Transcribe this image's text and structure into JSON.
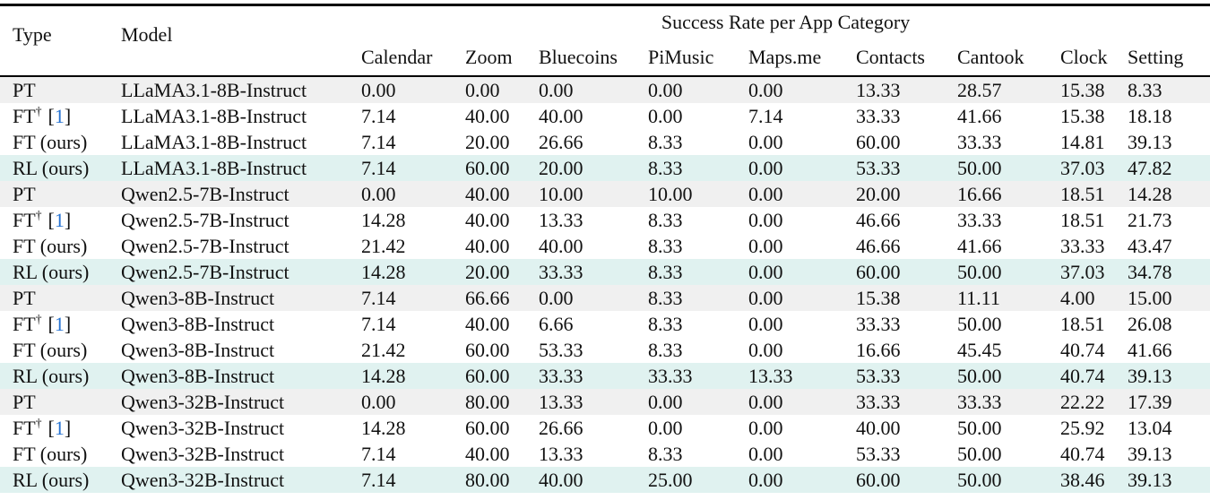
{
  "table": {
    "col_type": "Type",
    "col_model": "Model",
    "group_title": "Success Rate per App Category",
    "app_columns": [
      "Calendar",
      "Zoom",
      "Bluecoins",
      "PiMusic",
      "Maps.me",
      "Contacts",
      "Cantook",
      "Clock",
      "Setting"
    ],
    "cite_open": "[",
    "cite_close": "]",
    "rows": [
      {
        "type": "PT",
        "sup": "",
        "cite": "",
        "model": "LLaMA3.1-8B-Instruct",
        "bg": "gray",
        "values": [
          "0.00",
          "0.00",
          "0.00",
          "0.00",
          "0.00",
          "13.33",
          "28.57",
          "15.38",
          "8.33"
        ]
      },
      {
        "type": "FT",
        "sup": "†",
        "cite": "1",
        "model": "LLaMA3.1-8B-Instruct",
        "bg": "white",
        "values": [
          "7.14",
          "40.00",
          "40.00",
          "0.00",
          "7.14",
          "33.33",
          "41.66",
          "15.38",
          "18.18"
        ]
      },
      {
        "type": "FT (ours)",
        "sup": "",
        "cite": "",
        "model": "LLaMA3.1-8B-Instruct",
        "bg": "white",
        "values": [
          "7.14",
          "20.00",
          "26.66",
          "8.33",
          "0.00",
          "60.00",
          "33.33",
          "14.81",
          "39.13"
        ]
      },
      {
        "type": "RL (ours)",
        "sup": "",
        "cite": "",
        "model": "LLaMA3.1-8B-Instruct",
        "bg": "cyan",
        "values": [
          "7.14",
          "60.00",
          "20.00",
          "8.33",
          "0.00",
          "53.33",
          "50.00",
          "37.03",
          "47.82"
        ]
      },
      {
        "type": "PT",
        "sup": "",
        "cite": "",
        "model": "Qwen2.5-7B-Instruct",
        "bg": "gray",
        "values": [
          "0.00",
          "40.00",
          "10.00",
          "10.00",
          "0.00",
          "20.00",
          "16.66",
          "18.51",
          "14.28"
        ]
      },
      {
        "type": "FT",
        "sup": "†",
        "cite": "1",
        "model": "Qwen2.5-7B-Instruct",
        "bg": "white",
        "values": [
          "14.28",
          "40.00",
          "13.33",
          "8.33",
          "0.00",
          "46.66",
          "33.33",
          "18.51",
          "21.73"
        ]
      },
      {
        "type": "FT (ours)",
        "sup": "",
        "cite": "",
        "model": "Qwen2.5-7B-Instruct",
        "bg": "white",
        "values": [
          "21.42",
          "40.00",
          "40.00",
          "8.33",
          "0.00",
          "46.66",
          "41.66",
          "33.33",
          "43.47"
        ]
      },
      {
        "type": "RL (ours)",
        "sup": "",
        "cite": "",
        "model": "Qwen2.5-7B-Instruct",
        "bg": "cyan",
        "values": [
          "14.28",
          "20.00",
          "33.33",
          "8.33",
          "0.00",
          "60.00",
          "50.00",
          "37.03",
          "34.78"
        ]
      },
      {
        "type": "PT",
        "sup": "",
        "cite": "",
        "model": "Qwen3-8B-Instruct",
        "bg": "gray",
        "values": [
          "7.14",
          "66.66",
          "0.00",
          "8.33",
          "0.00",
          "15.38",
          "11.11",
          "4.00",
          "15.00"
        ]
      },
      {
        "type": "FT",
        "sup": "†",
        "cite": "1",
        "model": "Qwen3-8B-Instruct",
        "bg": "white",
        "values": [
          "7.14",
          "40.00",
          "6.66",
          "8.33",
          "0.00",
          "33.33",
          "50.00",
          "18.51",
          "26.08"
        ]
      },
      {
        "type": "FT (ours)",
        "sup": "",
        "cite": "",
        "model": "Qwen3-8B-Instruct",
        "bg": "white",
        "values": [
          "21.42",
          "60.00",
          "53.33",
          "8.33",
          "0.00",
          "16.66",
          "45.45",
          "40.74",
          "41.66"
        ]
      },
      {
        "type": "RL (ours)",
        "sup": "",
        "cite": "",
        "model": "Qwen3-8B-Instruct",
        "bg": "cyan",
        "values": [
          "14.28",
          "60.00",
          "33.33",
          "33.33",
          "13.33",
          "53.33",
          "50.00",
          "40.74",
          "39.13"
        ]
      },
      {
        "type": "PT",
        "sup": "",
        "cite": "",
        "model": "Qwen3-32B-Instruct",
        "bg": "gray",
        "values": [
          "0.00",
          "80.00",
          "13.33",
          "0.00",
          "0.00",
          "33.33",
          "33.33",
          "22.22",
          "17.39"
        ]
      },
      {
        "type": "FT",
        "sup": "†",
        "cite": "1",
        "model": "Qwen3-32B-Instruct",
        "bg": "white",
        "values": [
          "14.28",
          "60.00",
          "26.66",
          "0.00",
          "0.00",
          "40.00",
          "50.00",
          "25.92",
          "13.04"
        ]
      },
      {
        "type": "FT (ours)",
        "sup": "",
        "cite": "",
        "model": "Qwen3-32B-Instruct",
        "bg": "white",
        "values": [
          "7.14",
          "40.00",
          "13.33",
          "8.33",
          "0.00",
          "53.33",
          "50.00",
          "40.74",
          "39.13"
        ]
      },
      {
        "type": "RL (ours)",
        "sup": "",
        "cite": "",
        "model": "Qwen3-32B-Instruct",
        "bg": "cyan",
        "values": [
          "7.14",
          "80.00",
          "40.00",
          "25.00",
          "0.00",
          "60.00",
          "50.00",
          "38.46",
          "39.13"
        ]
      }
    ]
  },
  "colors": {
    "rule_black": "#000000",
    "row_bg": {
      "gray": "#f0f0f0",
      "white": "#ffffff",
      "cyan": "#e0f2f0"
    },
    "cite_blue": "#2673d2"
  }
}
